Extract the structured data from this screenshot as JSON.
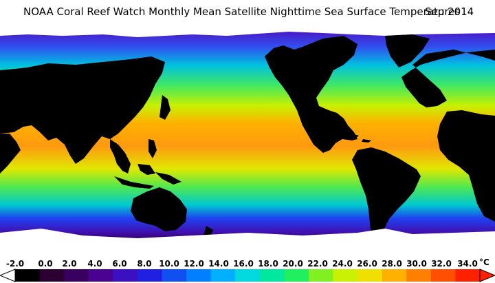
{
  "header": {
    "title": "NOAA Coral Reef Watch Monthly Mean Satellite Nighttime Sea Surface Temperatures",
    "date": "Sep 2014"
  },
  "map": {
    "projection": "equirectangular",
    "colors": {
      "land": "#000000",
      "sea_ice": "#ffffff"
    }
  },
  "colorbar": {
    "unit": "°C",
    "labels": [
      "-2.0",
      "0.0",
      "2.0",
      "4.0",
      "6.0",
      "8.0",
      "10.0",
      "12.0",
      "14.0",
      "16.0",
      "18.0",
      "20.0",
      "22.0",
      "24.0",
      "26.0",
      "28.0",
      "30.0",
      "32.0",
      "34.0"
    ],
    "colors": [
      "#000000",
      "#2a0030",
      "#3a0060",
      "#4a0090",
      "#3a10c0",
      "#2020e0",
      "#1050f0",
      "#0080ff",
      "#00b0ff",
      "#00d8e0",
      "#00e8a0",
      "#20f060",
      "#80f020",
      "#c8f000",
      "#f0e000",
      "#ffb000",
      "#ff8000",
      "#ff5000",
      "#ff2000"
    ],
    "under_color": "#ffffff",
    "over_color": "#ff2000"
  }
}
